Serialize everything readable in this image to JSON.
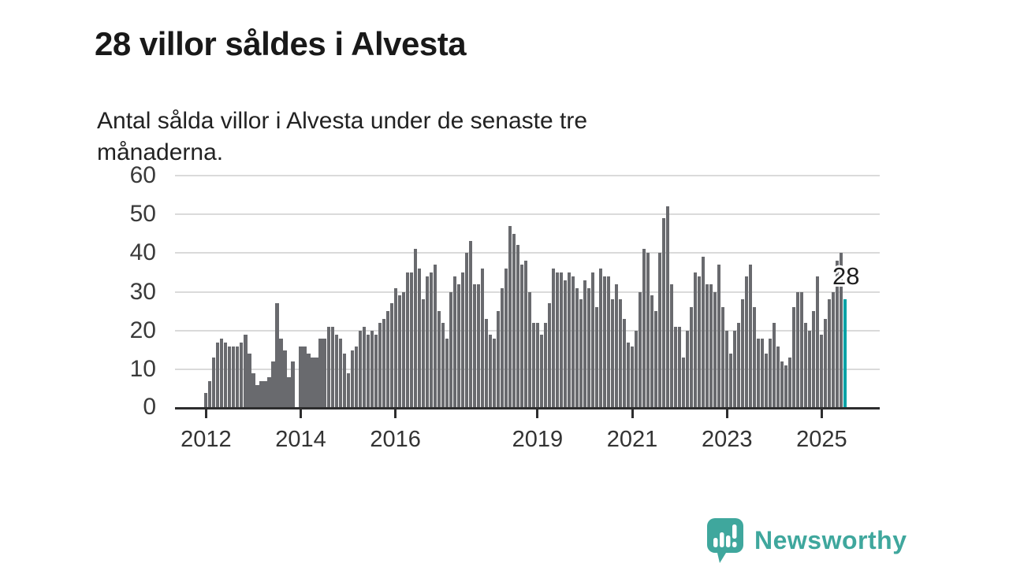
{
  "title": "28 villor såldes i Alvesta",
  "subtitle": {
    "lines": [
      "Antal sålda villor i Alvesta under de senaste tre",
      "månaderna."
    ]
  },
  "annotation": {
    "label": "28"
  },
  "footer": {
    "brand": "Newsworthy"
  },
  "colors": {
    "bar": "#696a6e",
    "highlight": "#00a2a5",
    "grid": "#dadada",
    "axis": "#2d2d2e",
    "label_text": "#333333",
    "brand_teal": "#3fa79d"
  },
  "chart_data": {
    "type": "bar",
    "title": "28 villor såldes i Alvesta",
    "subtitle": "Antal sålda villor i Alvesta under de senaste tre månaderna.",
    "unit": "sålda villor per 3 månader",
    "x_start": "2012-01",
    "x_end": "2025-07",
    "frequency": "monthly",
    "ylim": [
      0,
      60
    ],
    "yticks": [
      0,
      10,
      20,
      30,
      40,
      50,
      60
    ],
    "grid": true,
    "legend": false,
    "highlight_last": true,
    "last_value_label": "28",
    "xticks": [
      {
        "label": "2012",
        "month_index": 0
      },
      {
        "label": "2014",
        "month_index": 24
      },
      {
        "label": "2016",
        "month_index": 48
      },
      {
        "label": "2019",
        "month_index": 84
      },
      {
        "label": "2021",
        "month_index": 108
      },
      {
        "label": "2023",
        "month_index": 132
      },
      {
        "label": "2025",
        "month_index": 156
      }
    ],
    "values": [
      4,
      7,
      13,
      17,
      18,
      17,
      16,
      16,
      16,
      17,
      19,
      14,
      9,
      6,
      7,
      7,
      8,
      12,
      27,
      18,
      15,
      8,
      12,
      0,
      16,
      16,
      14,
      13,
      13,
      18,
      18,
      21,
      21,
      19,
      18,
      14,
      9,
      15,
      16,
      20,
      21,
      19,
      20,
      19,
      22,
      23,
      25,
      27,
      31,
      29,
      30,
      35,
      35,
      41,
      36,
      28,
      34,
      35,
      37,
      25,
      22,
      18,
      30,
      34,
      32,
      35,
      40,
      43,
      32,
      32,
      36,
      23,
      19,
      18,
      25,
      31,
      36,
      47,
      45,
      42,
      37,
      38,
      30,
      22,
      22,
      19,
      22,
      27,
      36,
      35,
      35,
      33,
      35,
      34,
      31,
      28,
      33,
      31,
      35,
      26,
      36,
      34,
      34,
      28,
      32,
      28,
      23,
      17,
      16,
      20,
      30,
      41,
      40,
      29,
      25,
      40,
      49,
      52,
      32,
      21,
      21,
      13,
      20,
      26,
      35,
      34,
      39,
      32,
      32,
      30,
      37,
      26,
      20,
      14,
      20,
      22,
      28,
      34,
      37,
      26,
      18,
      18,
      14,
      18,
      22,
      16,
      12,
      11,
      13,
      26,
      30,
      30,
      22,
      20,
      25,
      34,
      19,
      23,
      28,
      30,
      38,
      40,
      28
    ]
  }
}
